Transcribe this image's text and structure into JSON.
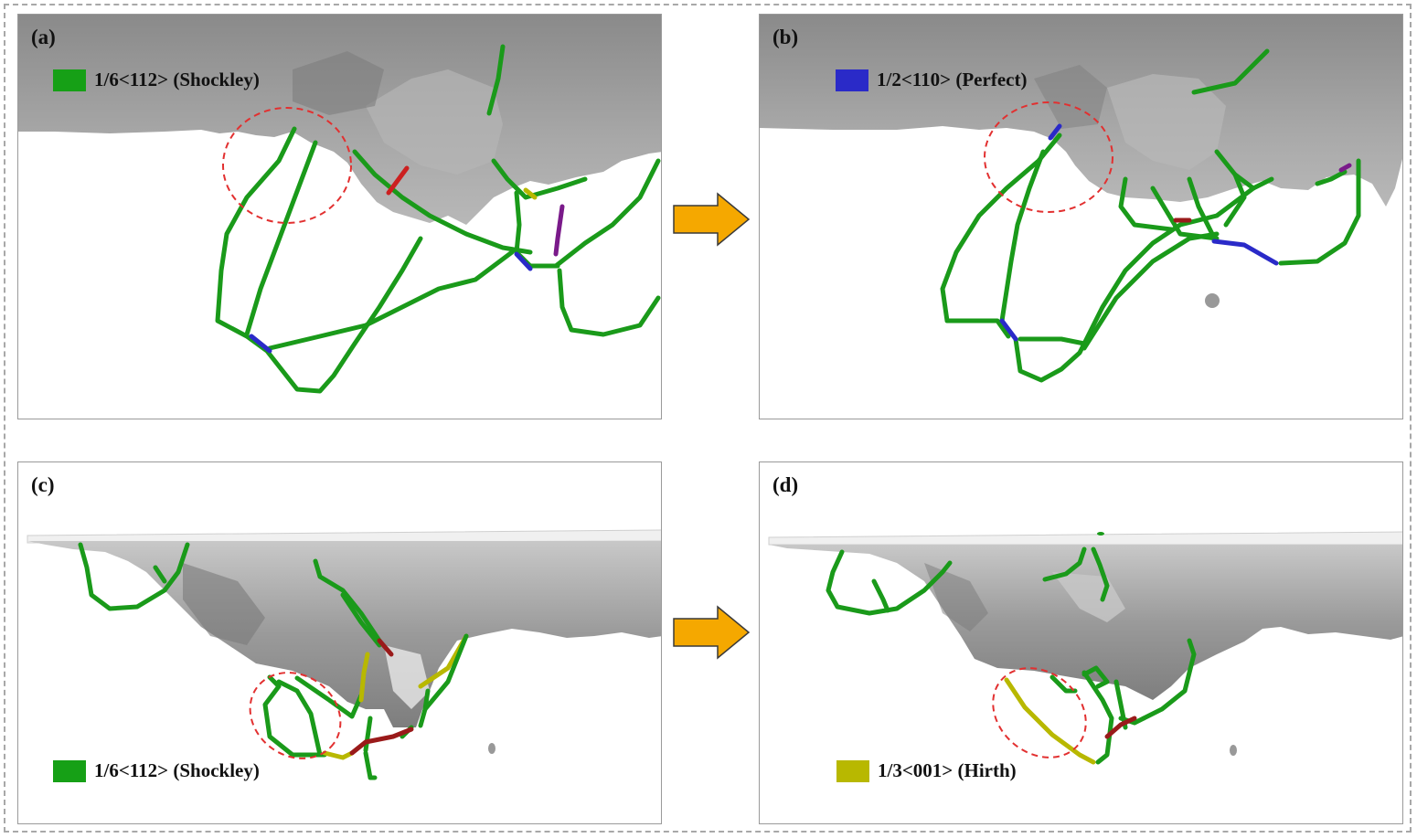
{
  "colors": {
    "shockley": "#1a9a1a",
    "perfect": "#2a2ac8",
    "hirth": "#b8b800",
    "stair_rod": "#9a1a1a",
    "other": "#7a1a8a",
    "surface": "#8e8e8e",
    "circle": "#e23030",
    "arrow": "#f5a800"
  },
  "panels": {
    "a": {
      "label": "(a)",
      "legend": {
        "text": "1/6<112> (Shockley)",
        "swatch_color": "#16a016"
      }
    },
    "b": {
      "label": "(b)",
      "legend": {
        "text": "1/2<110> (Perfect)",
        "swatch_color": "#2a2ac8"
      }
    },
    "c": {
      "label": "(c)",
      "legend": {
        "text": "1/6<112> (Shockley)",
        "swatch_color": "#16a016"
      }
    },
    "d": {
      "label": "(d)",
      "legend": {
        "text": "1/3<001> (Hirth)",
        "swatch_color": "#b8b800"
      }
    }
  }
}
